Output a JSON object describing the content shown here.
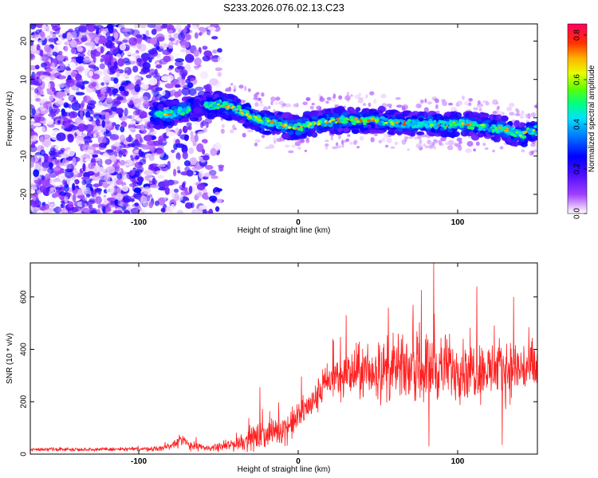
{
  "chart_data": [
    {
      "type": "heatmap",
      "title": "S233.2026.076.02.13.C23",
      "xlabel": "Height of straight line (km)",
      "ylabel": "Frequency (Hz)",
      "xlim": [
        -168,
        150
      ],
      "ylim": [
        -25,
        24.5
      ],
      "xticks": [
        -100,
        0,
        100
      ],
      "yticks": [
        -20,
        -10,
        0,
        10,
        20
      ],
      "colorbar": {
        "label": "Normalized spectral amplitude",
        "range": [
          0.0,
          0.85
        ],
        "ticks": [
          0.0,
          0.2,
          0.4,
          0.6,
          0.8
        ]
      },
      "ridge": {
        "description_points_km": [
          -90,
          -75,
          -60,
          -50,
          -40,
          -30,
          -20,
          -10,
          0,
          10,
          20,
          30,
          40,
          50,
          60,
          70,
          80,
          90,
          100,
          110,
          120,
          130,
          140,
          150
        ],
        "frequency_hz": [
          0.5,
          1.5,
          3.0,
          3.5,
          2.5,
          0.5,
          -1.0,
          -2.0,
          -2.5,
          -1.5,
          -1.0,
          -0.5,
          -0.8,
          -0.5,
          -1.5,
          -1.5,
          -1.5,
          -2.0,
          -1.5,
          -2.0,
          -2.5,
          -3.0,
          -4.5,
          -3.0
        ]
      }
    },
    {
      "type": "line",
      "title": "",
      "xlabel": "Height of straight line (km)",
      "ylabel": "SNR (10 * v/v)",
      "xlim": [
        -168,
        150
      ],
      "ylim": [
        0,
        730
      ],
      "xticks": [
        -100,
        0,
        100
      ],
      "yticks": [
        0,
        200,
        400,
        600
      ],
      "color": "#ff2020",
      "envelope": {
        "x": [
          -168,
          -120,
          -90,
          -80,
          -75,
          -65,
          -55,
          -45,
          -35,
          -25,
          -15,
          -5,
          0,
          5,
          10,
          15,
          20,
          25,
          30,
          40,
          60,
          80,
          100,
          120,
          150
        ],
        "mean": [
          18,
          18,
          20,
          30,
          55,
          28,
          22,
          30,
          50,
          65,
          85,
          110,
          140,
          175,
          200,
          250,
          280,
          300,
          300,
          310,
          320,
          330,
          330,
          320,
          330
        ],
        "spread": [
          8,
          8,
          10,
          20,
          30,
          20,
          12,
          25,
          45,
          60,
          60,
          70,
          70,
          70,
          75,
          80,
          90,
          100,
          110,
          120,
          140,
          150,
          140,
          130,
          130
        ]
      },
      "spikes": [
        {
          "x": -24,
          "y": 255
        },
        {
          "x": 30,
          "y": 530
        },
        {
          "x": 72,
          "y": 570
        },
        {
          "x": 85,
          "y": 730
        },
        {
          "x": 112,
          "y": 640
        },
        {
          "x": 135,
          "y": 600
        },
        {
          "x": 82,
          "y": 30
        },
        {
          "x": 128,
          "y": 35
        }
      ]
    }
  ]
}
